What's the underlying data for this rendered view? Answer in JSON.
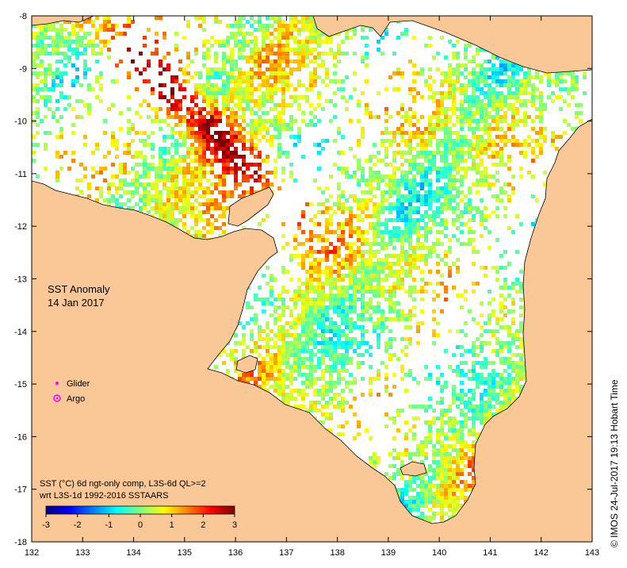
{
  "map": {
    "title_line1": "SST Anomaly",
    "title_line2": "14 Jan 2017",
    "x_ticks": [
      "132",
      "133",
      "134",
      "135",
      "136",
      "137",
      "138",
      "139",
      "140",
      "141",
      "142",
      "143"
    ],
    "y_ticks": [
      "-8",
      "-9",
      "-10",
      "-11",
      "-12",
      "-13",
      "-14",
      "-15",
      "-16",
      "-17",
      "-18"
    ],
    "lon_range": [
      132,
      143
    ],
    "lat_range": [
      -18,
      -8
    ]
  },
  "legend": {
    "glider_label": "Glider",
    "argo_label": "Argo",
    "glider_color": "#ff00ff",
    "argo_color": "#ff00ff"
  },
  "colorbar": {
    "note_line1": "SST (°C) 6d ngt-only comp, L3S-6d QL>=2",
    "note_line2": "wrt L3S-1d 1992-2016 SSTAARS",
    "ticks": [
      "-3",
      "-2",
      "-1",
      "0",
      "1",
      "2",
      "3"
    ],
    "min": -3,
    "max": 3,
    "colors": [
      "#00007f",
      "#0000ff",
      "#007fff",
      "#00ffff",
      "#7fff7f",
      "#ffff00",
      "#ff7f00",
      "#ff0000",
      "#7f0000"
    ]
  },
  "credit": "© IMOS 24-Jul-2017 19:13 Hobart Time",
  "colors": {
    "land": "#fac896",
    "ocean_nodata": "#ffffff"
  }
}
